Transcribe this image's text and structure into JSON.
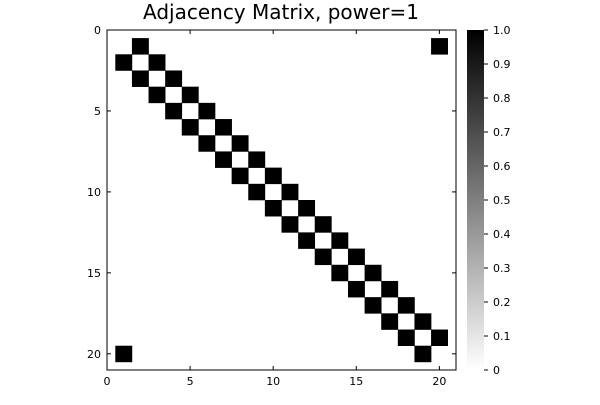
{
  "chart_data": {
    "type": "heatmap",
    "title": "Adjacency Matrix, power=1",
    "xlabel": "",
    "ylabel": "",
    "matrix_size": 20,
    "cell_value": 1,
    "nonzero_cells": [
      [
        1,
        2
      ],
      [
        20,
        1
      ],
      [
        2,
        1
      ],
      [
        2,
        3
      ],
      [
        3,
        2
      ],
      [
        3,
        4
      ],
      [
        4,
        3
      ],
      [
        4,
        5
      ],
      [
        5,
        4
      ],
      [
        5,
        6
      ],
      [
        6,
        5
      ],
      [
        6,
        7
      ],
      [
        7,
        6
      ],
      [
        7,
        8
      ],
      [
        8,
        7
      ],
      [
        8,
        9
      ],
      [
        9,
        8
      ],
      [
        9,
        10
      ],
      [
        10,
        9
      ],
      [
        10,
        11
      ],
      [
        11,
        10
      ],
      [
        11,
        12
      ],
      [
        12,
        11
      ],
      [
        12,
        13
      ],
      [
        13,
        12
      ],
      [
        13,
        14
      ],
      [
        14,
        13
      ],
      [
        14,
        15
      ],
      [
        15,
        14
      ],
      [
        15,
        16
      ],
      [
        16,
        15
      ],
      [
        16,
        17
      ],
      [
        17,
        16
      ],
      [
        17,
        18
      ],
      [
        18,
        17
      ],
      [
        18,
        19
      ],
      [
        19,
        18
      ],
      [
        19,
        20
      ],
      [
        20,
        19
      ],
      [
        1,
        20
      ]
    ],
    "xlim": [
      0,
      21
    ],
    "ylim": [
      0,
      21
    ],
    "y_inverted": true,
    "x_ticks": [
      0,
      5,
      10,
      15,
      20
    ],
    "y_ticks": [
      0,
      5,
      10,
      15,
      20
    ],
    "colorbar": {
      "range": [
        0,
        1
      ],
      "ticks": [
        "0",
        "0.1",
        "0.2",
        "0.3",
        "0.4",
        "0.5",
        "0.6",
        "0.7",
        "0.8",
        "0.9",
        "1.0"
      ],
      "colormap": [
        "#ffffff",
        "#000000"
      ]
    },
    "grid": false,
    "legend": "none"
  }
}
